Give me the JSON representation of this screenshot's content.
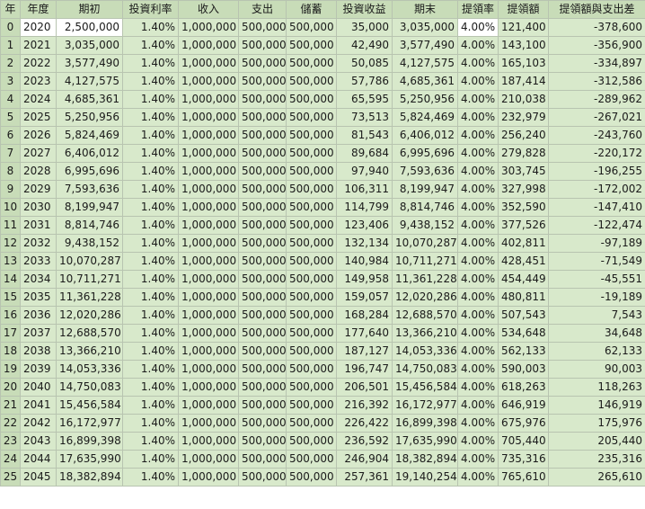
{
  "sheet": {
    "headers": [
      "年",
      "年度",
      "期初",
      "投資利率",
      "收入",
      "支出",
      "儲蓄",
      "投資收益",
      "期末",
      "提領率",
      "提領額",
      "提領額與支出差"
    ],
    "rows": [
      [
        "0",
        "2020",
        "2,500,000",
        "1.40%",
        "1,000,000",
        "500,000",
        "500,000",
        "35,000",
        "3,035,000",
        "4.00%",
        "121,400",
        "-378,600"
      ],
      [
        "1",
        "2021",
        "3,035,000",
        "1.40%",
        "1,000,000",
        "500,000",
        "500,000",
        "42,490",
        "3,577,490",
        "4.00%",
        "143,100",
        "-356,900"
      ],
      [
        "2",
        "2022",
        "3,577,490",
        "1.40%",
        "1,000,000",
        "500,000",
        "500,000",
        "50,085",
        "4,127,575",
        "4.00%",
        "165,103",
        "-334,897"
      ],
      [
        "3",
        "2023",
        "4,127,575",
        "1.40%",
        "1,000,000",
        "500,000",
        "500,000",
        "57,786",
        "4,685,361",
        "4.00%",
        "187,414",
        "-312,586"
      ],
      [
        "4",
        "2024",
        "4,685,361",
        "1.40%",
        "1,000,000",
        "500,000",
        "500,000",
        "65,595",
        "5,250,956",
        "4.00%",
        "210,038",
        "-289,962"
      ],
      [
        "5",
        "2025",
        "5,250,956",
        "1.40%",
        "1,000,000",
        "500,000",
        "500,000",
        "73,513",
        "5,824,469",
        "4.00%",
        "232,979",
        "-267,021"
      ],
      [
        "6",
        "2026",
        "5,824,469",
        "1.40%",
        "1,000,000",
        "500,000",
        "500,000",
        "81,543",
        "6,406,012",
        "4.00%",
        "256,240",
        "-243,760"
      ],
      [
        "7",
        "2027",
        "6,406,012",
        "1.40%",
        "1,000,000",
        "500,000",
        "500,000",
        "89,684",
        "6,995,696",
        "4.00%",
        "279,828",
        "-220,172"
      ],
      [
        "8",
        "2028",
        "6,995,696",
        "1.40%",
        "1,000,000",
        "500,000",
        "500,000",
        "97,940",
        "7,593,636",
        "4.00%",
        "303,745",
        "-196,255"
      ],
      [
        "9",
        "2029",
        "7,593,636",
        "1.40%",
        "1,000,000",
        "500,000",
        "500,000",
        "106,311",
        "8,199,947",
        "4.00%",
        "327,998",
        "-172,002"
      ],
      [
        "10",
        "2030",
        "8,199,947",
        "1.40%",
        "1,000,000",
        "500,000",
        "500,000",
        "114,799",
        "8,814,746",
        "4.00%",
        "352,590",
        "-147,410"
      ],
      [
        "11",
        "2031",
        "8,814,746",
        "1.40%",
        "1,000,000",
        "500,000",
        "500,000",
        "123,406",
        "9,438,152",
        "4.00%",
        "377,526",
        "-122,474"
      ],
      [
        "12",
        "2032",
        "9,438,152",
        "1.40%",
        "1,000,000",
        "500,000",
        "500,000",
        "132,134",
        "10,070,287",
        "4.00%",
        "402,811",
        "-97,189"
      ],
      [
        "13",
        "2033",
        "10,070,287",
        "1.40%",
        "1,000,000",
        "500,000",
        "500,000",
        "140,984",
        "10,711,271",
        "4.00%",
        "428,451",
        "-71,549"
      ],
      [
        "14",
        "2034",
        "10,711,271",
        "1.40%",
        "1,000,000",
        "500,000",
        "500,000",
        "149,958",
        "11,361,228",
        "4.00%",
        "454,449",
        "-45,551"
      ],
      [
        "15",
        "2035",
        "11,361,228",
        "1.40%",
        "1,000,000",
        "500,000",
        "500,000",
        "159,057",
        "12,020,286",
        "4.00%",
        "480,811",
        "-19,189"
      ],
      [
        "16",
        "2036",
        "12,020,286",
        "1.40%",
        "1,000,000",
        "500,000",
        "500,000",
        "168,284",
        "12,688,570",
        "4.00%",
        "507,543",
        "7,543"
      ],
      [
        "17",
        "2037",
        "12,688,570",
        "1.40%",
        "1,000,000",
        "500,000",
        "500,000",
        "177,640",
        "13,366,210",
        "4.00%",
        "534,648",
        "34,648"
      ],
      [
        "18",
        "2038",
        "13,366,210",
        "1.40%",
        "1,000,000",
        "500,000",
        "500,000",
        "187,127",
        "14,053,336",
        "4.00%",
        "562,133",
        "62,133"
      ],
      [
        "19",
        "2039",
        "14,053,336",
        "1.40%",
        "1,000,000",
        "500,000",
        "500,000",
        "196,747",
        "14,750,083",
        "4.00%",
        "590,003",
        "90,003"
      ],
      [
        "20",
        "2040",
        "14,750,083",
        "1.40%",
        "1,000,000",
        "500,000",
        "500,000",
        "206,501",
        "15,456,584",
        "4.00%",
        "618,263",
        "118,263"
      ],
      [
        "21",
        "2041",
        "15,456,584",
        "1.40%",
        "1,000,000",
        "500,000",
        "500,000",
        "216,392",
        "16,172,977",
        "4.00%",
        "646,919",
        "146,919"
      ],
      [
        "22",
        "2042",
        "16,172,977",
        "1.40%",
        "1,000,000",
        "500,000",
        "500,000",
        "226,422",
        "16,899,398",
        "4.00%",
        "675,976",
        "175,976"
      ],
      [
        "23",
        "2043",
        "16,899,398",
        "1.40%",
        "1,000,000",
        "500,000",
        "500,000",
        "236,592",
        "17,635,990",
        "4.00%",
        "705,440",
        "205,440"
      ],
      [
        "24",
        "2044",
        "17,635,990",
        "1.40%",
        "1,000,000",
        "500,000",
        "500,000",
        "246,904",
        "18,382,894",
        "4.00%",
        "735,316",
        "235,316"
      ],
      [
        "25",
        "2045",
        "18,382,894",
        "1.40%",
        "1,000,000",
        "500,000",
        "500,000",
        "257,361",
        "19,140,254",
        "4.00%",
        "765,610",
        "265,610"
      ]
    ]
  },
  "colors": {
    "header_bg": "#c8dcb8",
    "cell_bg": "#d8e9cb",
    "grid": "#b8c4b0",
    "input_cell_bg": "#ffffff"
  }
}
